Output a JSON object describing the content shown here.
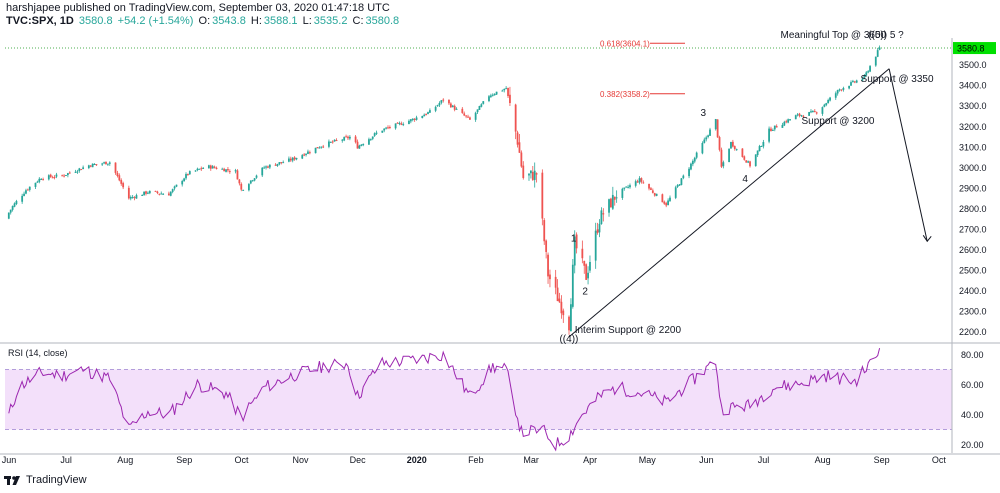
{
  "header": {
    "publisher_line": "harshjapee published on TradingView.com, September 03, 2020 01:47:18 UTC",
    "symbol": "TVC:SPX, 1D",
    "last": "3580.8",
    "change": "+54.2 (+1.54%)",
    "o_label": "O:",
    "o": "3543.8",
    "h_label": "H:",
    "h": "3588.1",
    "l_label": "L:",
    "l": "3535.2",
    "c_label": "C:",
    "c": "3580.8"
  },
  "footer": {
    "brand": "TradingView"
  },
  "colors": {
    "up": "#26a69a",
    "down": "#ef5350",
    "price_tag": "#00e000",
    "rsi": "#9c27b0",
    "rsi_band": "#f3e0fa"
  },
  "chart_data": [
    {
      "type": "candlestick",
      "title": "TVC:SPX, 1D",
      "x_tick_labels": [
        "Jun",
        "Jul",
        "Aug",
        "Sep",
        "Oct",
        "Nov",
        "Dec",
        "2020",
        "Feb",
        "Mar",
        "Apr",
        "May",
        "Jun",
        "Jul",
        "Aug",
        "Sep",
        "Oct"
      ],
      "y_tick_labels": [
        "2200.0",
        "2300.0",
        "2400.0",
        "2500.0",
        "2600.0",
        "2700.0",
        "2800.0",
        "2900.0",
        "3000.0",
        "3100.0",
        "3200.0",
        "3300.0",
        "3400.0",
        "3500.0"
      ],
      "ylim": [
        2150,
        3620
      ],
      "grid": false,
      "last_price_tag": "3580.8",
      "trend": [
        {
          "date": "2019-06-01",
          "close": 2750
        },
        {
          "date": "2019-06-05",
          "close": 2810
        },
        {
          "date": "2019-06-12",
          "close": 2890
        },
        {
          "date": "2019-06-20",
          "close": 2950
        },
        {
          "date": "2019-07-01",
          "close": 2960
        },
        {
          "date": "2019-07-15",
          "close": 3010
        },
        {
          "date": "2019-07-26",
          "close": 3025
        },
        {
          "date": "2019-08-05",
          "close": 2850
        },
        {
          "date": "2019-08-15",
          "close": 2880
        },
        {
          "date": "2019-08-26",
          "close": 2870
        },
        {
          "date": "2019-09-05",
          "close": 2970
        },
        {
          "date": "2019-09-15",
          "close": 3005
        },
        {
          "date": "2019-09-30",
          "close": 2980
        },
        {
          "date": "2019-10-03",
          "close": 2890
        },
        {
          "date": "2019-10-15",
          "close": 3000
        },
        {
          "date": "2019-10-30",
          "close": 3040
        },
        {
          "date": "2019-11-15",
          "close": 3110
        },
        {
          "date": "2019-11-30",
          "close": 3150
        },
        {
          "date": "2019-12-03",
          "close": 3100
        },
        {
          "date": "2019-12-15",
          "close": 3180
        },
        {
          "date": "2019-12-31",
          "close": 3230
        },
        {
          "date": "2020-01-10",
          "close": 3270
        },
        {
          "date": "2020-01-17",
          "close": 3330
        },
        {
          "date": "2020-01-31",
          "close": 3230
        },
        {
          "date": "2020-02-10",
          "close": 3350
        },
        {
          "date": "2020-02-19",
          "close": 3386
        },
        {
          "date": "2020-02-25",
          "close": 3130
        },
        {
          "date": "2020-02-28",
          "close": 2950
        },
        {
          "date": "2020-03-06",
          "close": 2970
        },
        {
          "date": "2020-03-12",
          "close": 2480
        },
        {
          "date": "2020-03-16",
          "close": 2390
        },
        {
          "date": "2020-03-23",
          "close": 2237
        },
        {
          "date": "2020-03-26",
          "close": 2630
        },
        {
          "date": "2020-04-01",
          "close": 2470
        },
        {
          "date": "2020-04-08",
          "close": 2750
        },
        {
          "date": "2020-04-17",
          "close": 2870
        },
        {
          "date": "2020-04-29",
          "close": 2940
        },
        {
          "date": "2020-05-13",
          "close": 2820
        },
        {
          "date": "2020-05-27",
          "close": 3030
        },
        {
          "date": "2020-06-08",
          "close": 3230
        },
        {
          "date": "2020-06-11",
          "close": 3000
        },
        {
          "date": "2020-06-16",
          "close": 3120
        },
        {
          "date": "2020-06-26",
          "close": 3010
        },
        {
          "date": "2020-07-06",
          "close": 3180
        },
        {
          "date": "2020-07-20",
          "close": 3250
        },
        {
          "date": "2020-07-31",
          "close": 3270
        },
        {
          "date": "2020-08-12",
          "close": 3380
        },
        {
          "date": "2020-08-25",
          "close": 3440
        },
        {
          "date": "2020-09-02",
          "close": 3580
        }
      ],
      "fib_levels": [
        {
          "label": "0.618(3604.1)",
          "value": 3604.1
        },
        {
          "label": "0.382(3358.2)",
          "value": 3358.2
        }
      ],
      "annotations": [
        {
          "text": "Meaningful Top @ 3600"
        },
        {
          "text": "((5)) 5 ?"
        },
        {
          "text": "Support @ 3350"
        },
        {
          "text": "Support @ 3200"
        },
        {
          "text": "Interim  Support @ 2200"
        },
        {
          "text": "((4))"
        },
        {
          "text": "1"
        },
        {
          "text": "2"
        },
        {
          "text": "3"
        },
        {
          "text": "4"
        }
      ]
    },
    {
      "type": "line",
      "title": "RSI (14, close)",
      "y_tick_labels": [
        "20.00",
        "40.00",
        "60.00",
        "80.00"
      ],
      "ylim": [
        15,
        87
      ],
      "band": [
        30,
        70
      ],
      "series": [
        {
          "points": [
            {
              "date": "2019-06-01",
              "rsi": 32
            },
            {
              "date": "2019-06-08",
              "rsi": 58
            },
            {
              "date": "2019-06-20",
              "rsi": 68
            },
            {
              "date": "2019-07-01",
              "rsi": 66
            },
            {
              "date": "2019-07-12",
              "rsi": 70
            },
            {
              "date": "2019-07-26",
              "rsi": 64
            },
            {
              "date": "2019-08-05",
              "rsi": 30
            },
            {
              "date": "2019-08-15",
              "rsi": 42
            },
            {
              "date": "2019-08-26",
              "rsi": 40
            },
            {
              "date": "2019-09-10",
              "rsi": 60
            },
            {
              "date": "2019-09-25",
              "rsi": 54
            },
            {
              "date": "2019-10-03",
              "rsi": 38
            },
            {
              "date": "2019-10-15",
              "rsi": 58
            },
            {
              "date": "2019-10-30",
              "rsi": 66
            },
            {
              "date": "2019-11-15",
              "rsi": 72
            },
            {
              "date": "2019-11-28",
              "rsi": 74
            },
            {
              "date": "2019-12-03",
              "rsi": 52
            },
            {
              "date": "2019-12-15",
              "rsi": 74
            },
            {
              "date": "2019-12-31",
              "rsi": 76
            },
            {
              "date": "2020-01-17",
              "rsi": 80
            },
            {
              "date": "2020-01-31",
              "rsi": 52
            },
            {
              "date": "2020-02-12",
              "rsi": 72
            },
            {
              "date": "2020-02-19",
              "rsi": 70
            },
            {
              "date": "2020-02-27",
              "rsi": 28
            },
            {
              "date": "2020-03-09",
              "rsi": 30
            },
            {
              "date": "2020-03-16",
              "rsi": 20
            },
            {
              "date": "2020-03-23",
              "rsi": 26
            },
            {
              "date": "2020-03-30",
              "rsi": 40
            },
            {
              "date": "2020-04-08",
              "rsi": 52
            },
            {
              "date": "2020-04-17",
              "rsi": 58
            },
            {
              "date": "2020-05-01",
              "rsi": 54
            },
            {
              "date": "2020-05-13",
              "rsi": 48
            },
            {
              "date": "2020-06-08",
              "rsi": 76
            },
            {
              "date": "2020-06-11",
              "rsi": 44
            },
            {
              "date": "2020-06-26",
              "rsi": 46
            },
            {
              "date": "2020-07-08",
              "rsi": 58
            },
            {
              "date": "2020-07-20",
              "rsi": 60
            },
            {
              "date": "2020-08-05",
              "rsi": 66
            },
            {
              "date": "2020-08-20",
              "rsi": 62
            },
            {
              "date": "2020-08-31",
              "rsi": 78
            },
            {
              "date": "2020-09-02",
              "rsi": 84
            }
          ]
        }
      ]
    }
  ]
}
